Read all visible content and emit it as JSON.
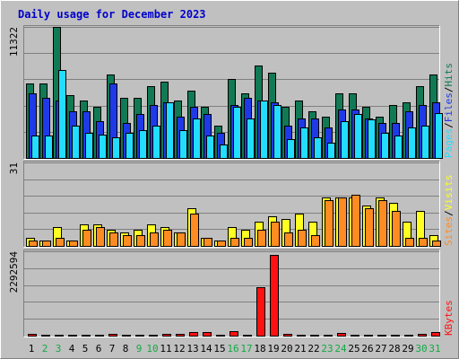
{
  "colors": {
    "background": "#c0c0c0",
    "hits": "#117a55",
    "files": "#1e3ae8",
    "pages": "#22ddff",
    "visits": "#ffff22",
    "sites": "#ff8c22",
    "kbytes": "#ff1111",
    "title": "#0000cc",
    "weekday": "#000000",
    "weekend": "#11aa44"
  },
  "chart_data": [
    {
      "type": "bar",
      "title": "Daily usage for December 2023",
      "y_tick_label": "11322",
      "legend": [
        {
          "name": "Pages",
          "color": "#22ddff"
        },
        {
          "name": "Files",
          "color": "#1e3ae8"
        },
        {
          "name": "Hits",
          "color": "#117a55"
        }
      ],
      "legend_separator": "/",
      "categories": [
        "1",
        "2",
        "3",
        "4",
        "5",
        "6",
        "7",
        "8",
        "9",
        "10",
        "11",
        "12",
        "13",
        "14",
        "15",
        "16",
        "17",
        "18",
        "19",
        "20",
        "21",
        "22",
        "23",
        "24",
        "25",
        "26",
        "27",
        "28",
        "29",
        "30",
        "31"
      ],
      "weekend_days": [
        "2",
        "3",
        "9",
        "10",
        "16",
        "17",
        "23",
        "24",
        "30",
        "31"
      ],
      "ylim": [
        0,
        11322
      ],
      "series": [
        {
          "name": "Hits",
          "values": [
            6400,
            6400,
            11322,
            5400,
            5000,
            4400,
            7200,
            5200,
            5200,
            6200,
            6600,
            5000,
            5800,
            4400,
            2800,
            6800,
            5600,
            8000,
            7400,
            4400,
            5000,
            4000,
            3600,
            5600,
            5600,
            4400,
            3600,
            4600,
            4800,
            6200,
            7200
          ]
        },
        {
          "name": "Files",
          "values": [
            5600,
            5200,
            5000,
            4000,
            4000,
            3200,
            6400,
            3000,
            3800,
            4600,
            4800,
            3600,
            4400,
            3800,
            2200,
            4600,
            5200,
            5000,
            4800,
            2800,
            3400,
            3400,
            2600,
            4200,
            4200,
            3400,
            3000,
            3000,
            4000,
            4600,
            4800
          ]
        },
        {
          "name": "Pages",
          "values": [
            1900,
            1900,
            7600,
            2800,
            2200,
            2000,
            1800,
            2200,
            2400,
            2800,
            4800,
            2400,
            3400,
            1900,
            1200,
            4400,
            3400,
            5000,
            4600,
            1600,
            2600,
            1800,
            1300,
            3200,
            3800,
            3300,
            2200,
            1900,
            2600,
            2800,
            3900
          ]
        }
      ]
    },
    {
      "type": "bar",
      "y_tick_label": "31",
      "legend": [
        {
          "name": "Sites",
          "color": "#ff8c22"
        },
        {
          "name": "Visits",
          "color": "#ffff22"
        }
      ],
      "legend_separator": "/",
      "categories": [
        "1",
        "2",
        "3",
        "4",
        "5",
        "6",
        "7",
        "8",
        "9",
        "10",
        "11",
        "12",
        "13",
        "14",
        "15",
        "16",
        "17",
        "18",
        "19",
        "20",
        "21",
        "22",
        "23",
        "24",
        "25",
        "26",
        "27",
        "28",
        "29",
        "30",
        "31"
      ],
      "ylim": [
        0,
        31
      ],
      "series": [
        {
          "name": "Visits",
          "values": [
            3,
            2,
            7,
            2,
            8,
            8,
            6,
            5,
            6,
            8,
            7,
            5,
            14,
            3,
            2,
            7,
            6,
            9,
            11,
            10,
            12,
            9,
            18,
            18,
            18,
            15,
            18,
            16,
            9,
            13,
            4
          ]
        },
        {
          "name": "Sites",
          "values": [
            2,
            2,
            3,
            2,
            6,
            7,
            5,
            4,
            4,
            5,
            6,
            5,
            12,
            3,
            2,
            3,
            3,
            6,
            9,
            5,
            6,
            4,
            17,
            18,
            19,
            14,
            17,
            13,
            3,
            3,
            2
          ]
        }
      ]
    },
    {
      "type": "bar",
      "y_tick_label": "2292594",
      "legend": [
        {
          "name": "KBytes",
          "color": "#ff1111"
        }
      ],
      "categories": [
        "1",
        "2",
        "3",
        "4",
        "5",
        "6",
        "7",
        "8",
        "9",
        "10",
        "11",
        "12",
        "13",
        "14",
        "15",
        "16",
        "17",
        "18",
        "19",
        "20",
        "21",
        "22",
        "23",
        "24",
        "25",
        "26",
        "27",
        "28",
        "29",
        "30",
        "31"
      ],
      "ylim": [
        0,
        2292594
      ],
      "series": [
        {
          "name": "KBytes",
          "values": [
            55000,
            30000,
            30000,
            30000,
            30000,
            30000,
            55000,
            30000,
            30000,
            30000,
            55000,
            55000,
            90000,
            90000,
            30000,
            110000,
            30000,
            1325000,
            2200000,
            55000,
            30000,
            30000,
            30000,
            75000,
            30000,
            30000,
            30000,
            30000,
            30000,
            55000,
            90000
          ]
        }
      ]
    }
  ]
}
